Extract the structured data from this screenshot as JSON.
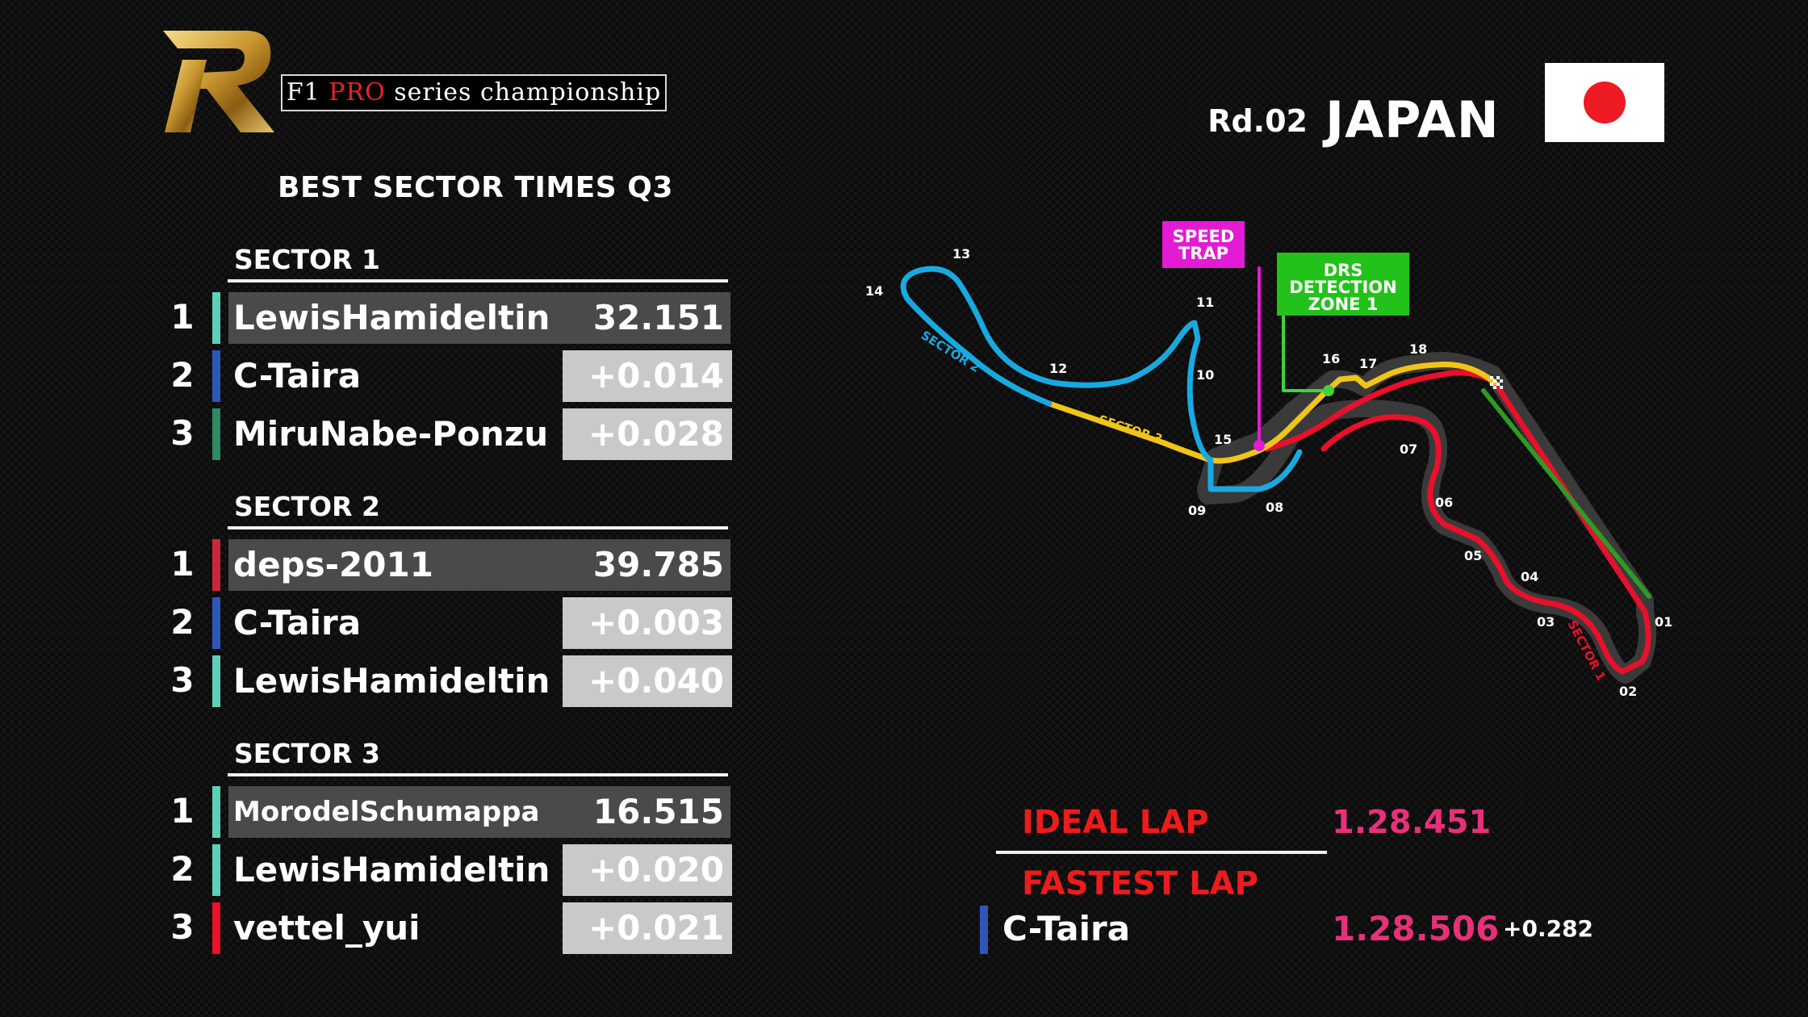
{
  "header": {
    "series": {
      "prefix": "F1",
      "highlight": "PRO",
      "suffix": "series championship"
    },
    "round": "Rd.02",
    "country": "JAPAN",
    "heading": "BEST SECTOR TIMES Q3"
  },
  "colors": {
    "teal": "#5ed0b5",
    "blue": "#2e57b5",
    "green": "#2d8a63",
    "crimson": "#c8283e",
    "red": "#e8102a",
    "pink_time": "#e8307a",
    "speed_trap": "#e31bd4",
    "drs": "#22c21a"
  },
  "sectors": [
    {
      "title": "SECTOR 1",
      "rows": [
        {
          "pos": "1",
          "driver": "LewisHamideltin",
          "time": "32.151",
          "color": "#5ed0b5"
        },
        {
          "pos": "2",
          "driver": "C-Taira",
          "time": "+0.014",
          "color": "#2e57b5"
        },
        {
          "pos": "3",
          "driver": "MiruNabe-Ponzu",
          "time": "+0.028",
          "color": "#2d8a63"
        }
      ]
    },
    {
      "title": "SECTOR 2",
      "rows": [
        {
          "pos": "1",
          "driver": "deps-2011",
          "time": "39.785",
          "color": "#c8283e"
        },
        {
          "pos": "2",
          "driver": "C-Taira",
          "time": "+0.003",
          "color": "#2e57b5"
        },
        {
          "pos": "3",
          "driver": "LewisHamideltin",
          "time": "+0.040",
          "color": "#5ed0b5"
        }
      ]
    },
    {
      "title": "SECTOR 3",
      "rows": [
        {
          "pos": "1",
          "driver": "MorodelSchumappa",
          "time": "16.515",
          "color": "#5ed0b5"
        },
        {
          "pos": "2",
          "driver": "LewisHamideltin",
          "time": "+0.020",
          "color": "#5ed0b5"
        },
        {
          "pos": "3",
          "driver": "vettel_yui",
          "time": "+0.021",
          "color": "#e8102a"
        }
      ]
    }
  ],
  "laps": {
    "ideal_label": "IDEAL LAP",
    "ideal_time": "1.28.451",
    "fastest_label": "FASTEST LAP",
    "fastest_driver": "C-Taira",
    "fastest_time": "1.28.506",
    "fastest_gap": "+0.282"
  },
  "track": {
    "speed_trap": "SPEED TRAP",
    "drs": "DRS DETECTION ZONE 1",
    "sector_labels": [
      "SECTOR 1",
      "SECTOR 2",
      "SECTOR 3"
    ],
    "turns": [
      "01",
      "02",
      "03",
      "04",
      "05",
      "06",
      "07",
      "08",
      "09",
      "10",
      "11",
      "12",
      "13",
      "14",
      "15",
      "16",
      "17",
      "18"
    ]
  }
}
